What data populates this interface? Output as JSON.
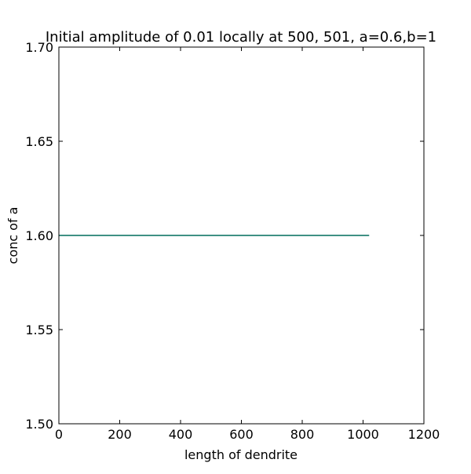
{
  "chart_data": {
    "type": "line",
    "title": "Initial amplitude of 0.01 locally at 500, 501, a=0.6,b=1",
    "xlabel": "length of dendrite",
    "ylabel": "conc of a",
    "xlim": [
      0,
      1200
    ],
    "ylim": [
      1.5,
      1.7
    ],
    "xticks": [
      0,
      200,
      400,
      600,
      800,
      1000,
      1200
    ],
    "yticks": [
      1.5,
      1.55,
      1.6,
      1.65,
      1.7
    ],
    "xtick_labels": [
      "0",
      "200",
      "400",
      "600",
      "800",
      "1000",
      "1200"
    ],
    "ytick_labels": [
      "1.50",
      "1.55",
      "1.60",
      "1.65",
      "1.70"
    ],
    "grid": false,
    "legend": "none",
    "series": [
      {
        "color": "#006d5b",
        "x": [
          0,
          1020
        ],
        "y": [
          1.6,
          1.6
        ]
      }
    ]
  }
}
